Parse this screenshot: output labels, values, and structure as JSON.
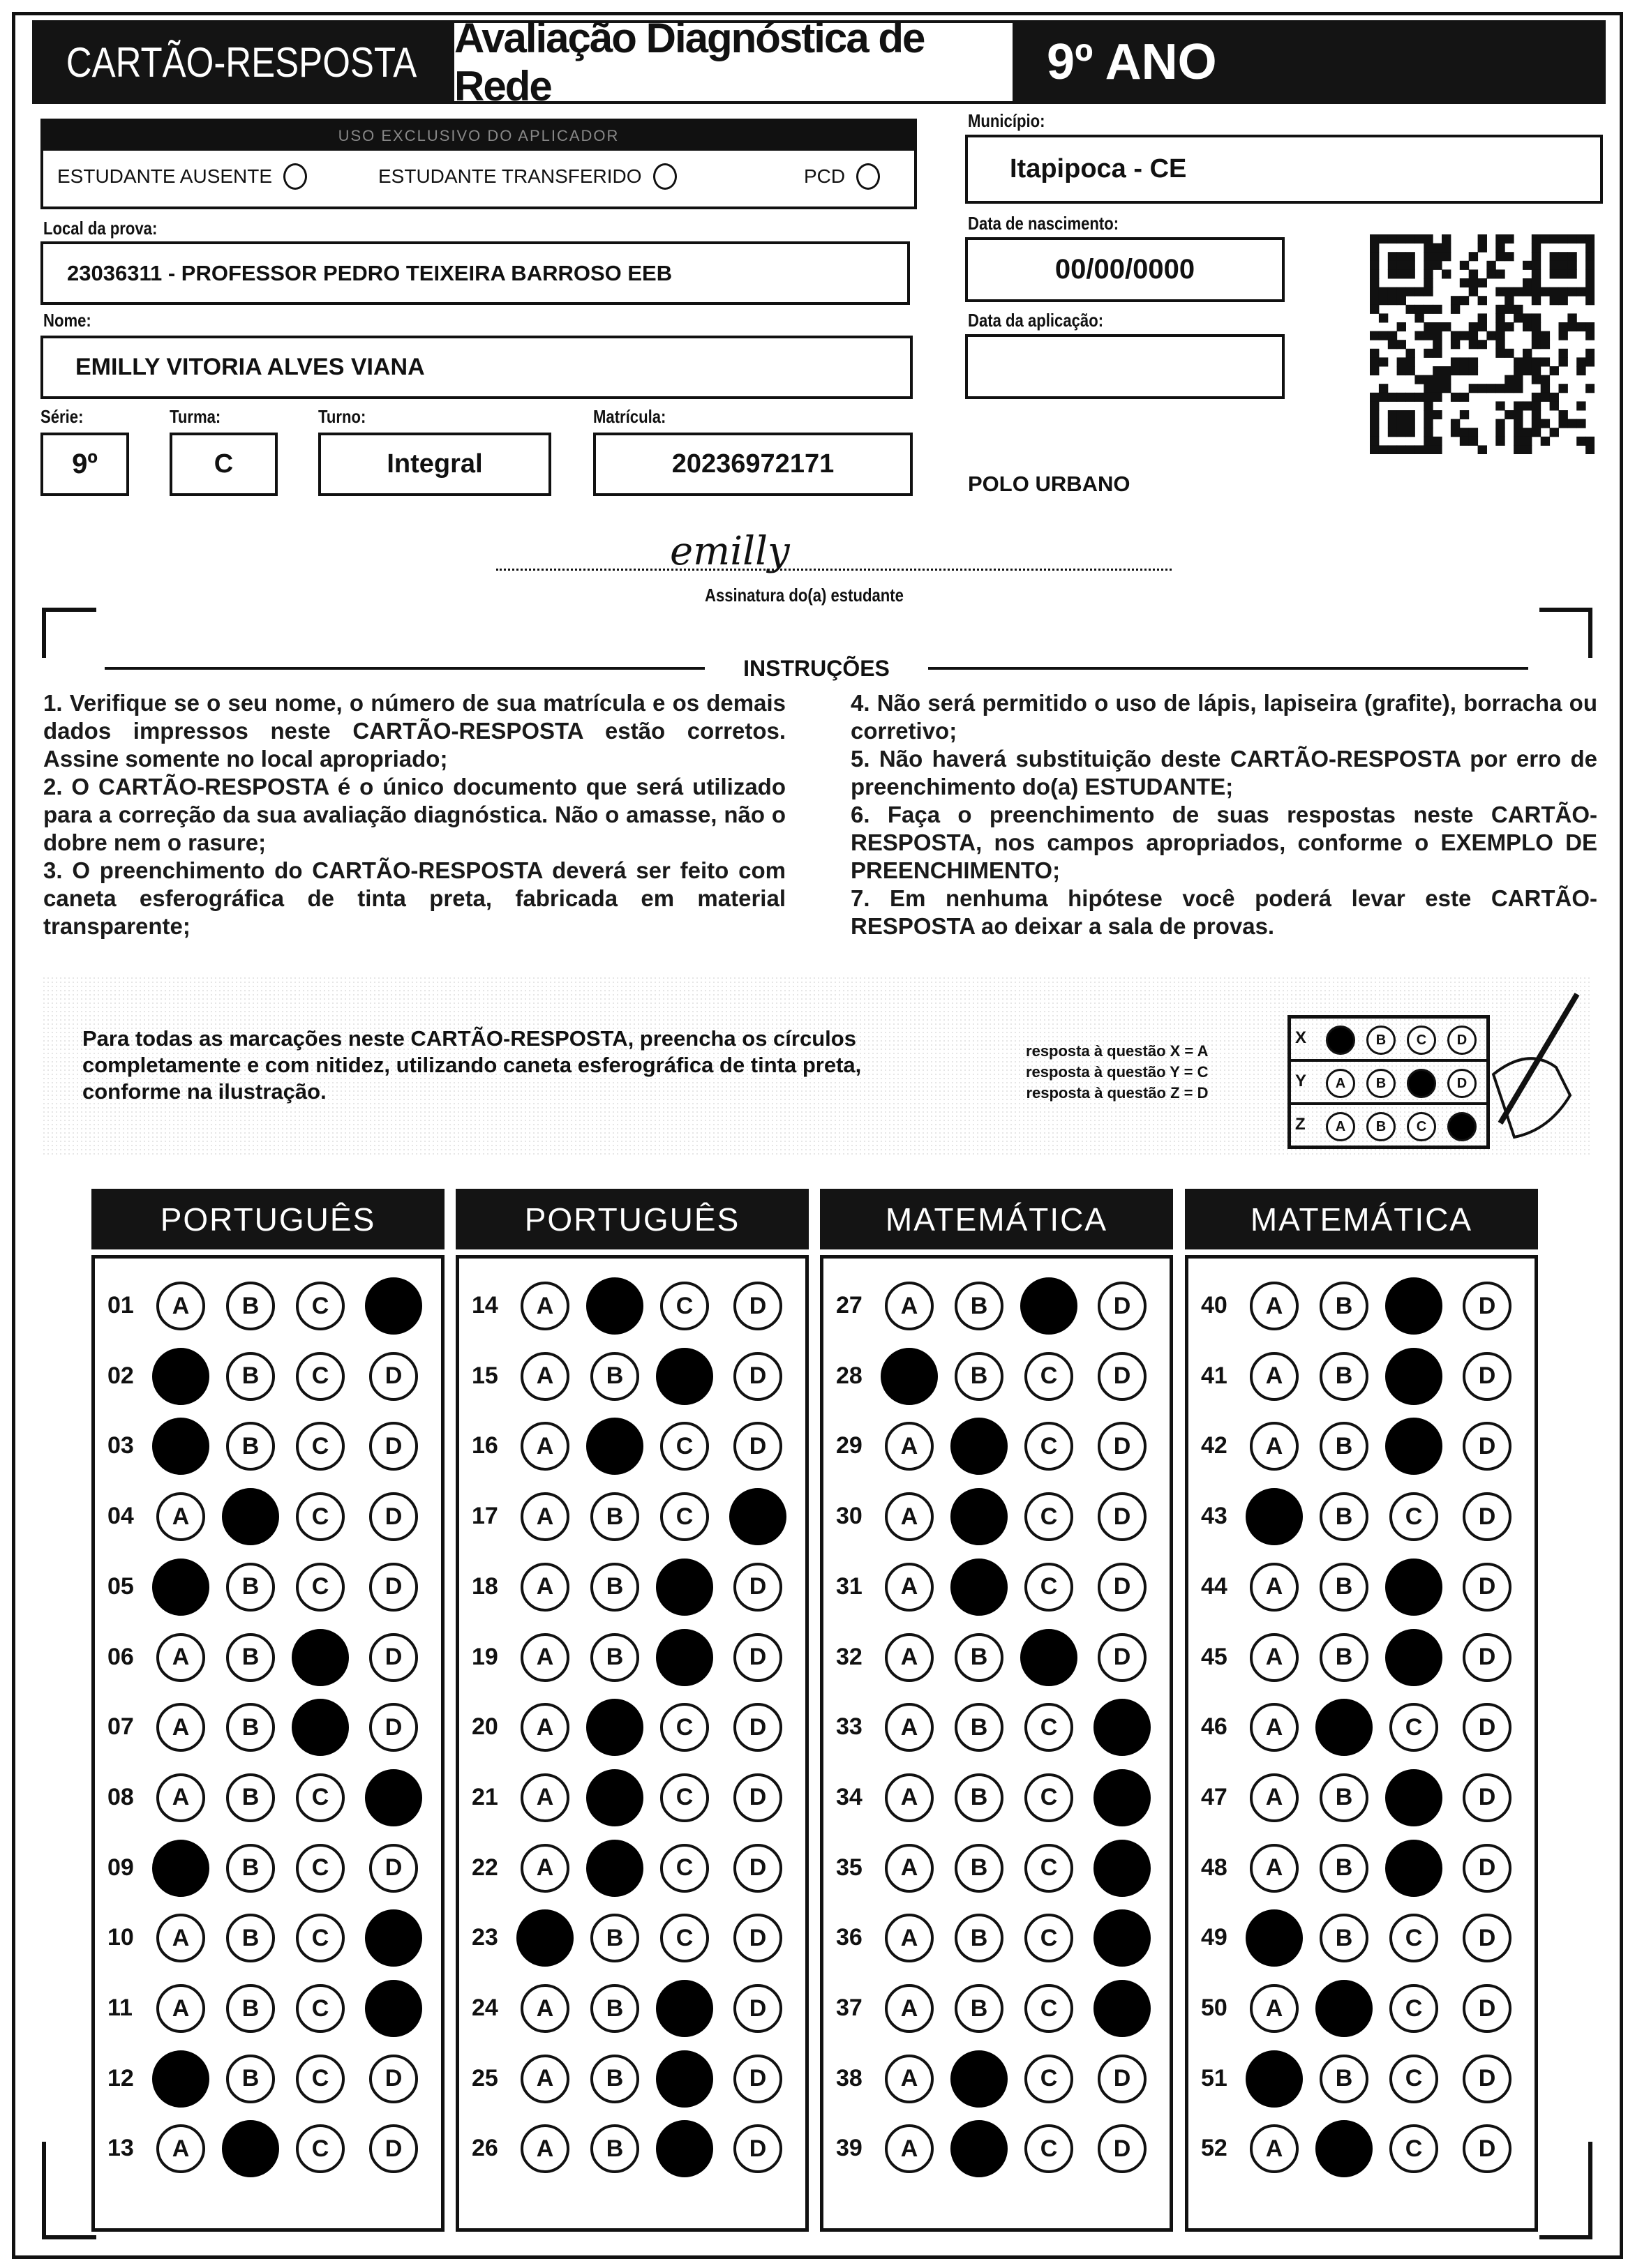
{
  "header": {
    "card_title": "CARTÃO-RESPOSTA",
    "exam_title": "Avaliação Diagnóstica de Rede",
    "grade": "9º ANO"
  },
  "applicator": {
    "title": "USO EXCLUSIVO DO APLICADOR",
    "options": [
      "ESTUDANTE AUSENTE",
      "ESTUDANTE TRANSFERIDO",
      "PCD"
    ]
  },
  "fields": {
    "municipio_label": "Município:",
    "municipio": "Itapipoca - CE",
    "local_label": "Local da prova:",
    "local": "23036311 - PROFESSOR PEDRO TEIXEIRA BARROSO EEB",
    "nascimento_label": "Data de nascimento:",
    "nascimento": "00/00/0000",
    "nome_label": "Nome:",
    "nome": "EMILLY VITORIA ALVES VIANA",
    "aplicacao_label": "Data da aplicação:",
    "aplicacao": "",
    "serie_label": "Série:",
    "serie": "9º",
    "turma_label": "Turma:",
    "turma": "C",
    "turno_label": "Turno:",
    "turno": "Integral",
    "matricula_label": "Matrícula:",
    "matricula": "20236972171",
    "polo": "POLO URBANO"
  },
  "signature": {
    "handwritten": "emilly",
    "label": "Assinatura do(a) estudante"
  },
  "instructions": {
    "title": "INSTRUÇÕES",
    "left": "1. Verifique se o seu nome, o número de sua matrícula e os demais dados impressos neste CARTÃO-RESPOSTA estão corretos. Assine somente no local apropriado;\n2. O CARTÃO-RESPOSTA é o único documento que será utilizado para a correção da sua avaliação diagnóstica. Não o amasse, não o dobre nem o rasure;\n3. O preenchimento do CARTÃO-RESPOSTA deverá ser feito com caneta esferográfica de tinta preta, fabricada em material transparente;",
    "right": "4. Não será permitido o uso de lápis, lapiseira (grafite), borracha ou corretivo;\n5. Não haverá substituição deste CARTÃO-RESPOSTA por erro de preenchimento do(a) ESTUDANTE;\n6. Faça o preenchimento de suas respostas neste CARTÃO-RESPOSTA, nos campos apropriados, conforme o EXEMPLO DE PREENCHIMENTO;\n7. Em nenhuma hipótese você poderá levar este CARTÃO-RESPOSTA ao deixar a sala de provas."
  },
  "fill_example": {
    "text": "Para todas as marcações neste CARTÃO-RESPOSTA, preencha os círculos completamente e com nitidez, utilizando caneta esferográfica de tinta preta, conforme na ilustração.",
    "legend": [
      "resposta à questão X = A",
      "resposta à questão Y = C",
      "resposta à questão Z = D"
    ],
    "rows": [
      {
        "label": "X",
        "marked": "A"
      },
      {
        "label": "Y",
        "marked": "C"
      },
      {
        "label": "Z",
        "marked": "D"
      }
    ]
  },
  "options": [
    "A",
    "B",
    "C",
    "D"
  ],
  "sections": [
    {
      "title": "PORTUGUÊS",
      "questions": [
        [
          "01",
          "D"
        ],
        [
          "02",
          "A"
        ],
        [
          "03",
          "A"
        ],
        [
          "04",
          "B"
        ],
        [
          "05",
          "A"
        ],
        [
          "06",
          "C"
        ],
        [
          "07",
          "C"
        ],
        [
          "08",
          "D"
        ],
        [
          "09",
          "A"
        ],
        [
          "10",
          "D"
        ],
        [
          "11",
          "D"
        ],
        [
          "12",
          "A"
        ],
        [
          "13",
          "B"
        ]
      ]
    },
    {
      "title": "PORTUGUÊS",
      "questions": [
        [
          "14",
          "B"
        ],
        [
          "15",
          "C"
        ],
        [
          "16",
          "B"
        ],
        [
          "17",
          "D"
        ],
        [
          "18",
          "C"
        ],
        [
          "19",
          "C"
        ],
        [
          "20",
          "B"
        ],
        [
          "21",
          "B"
        ],
        [
          "22",
          "B"
        ],
        [
          "23",
          "A"
        ],
        [
          "24",
          "C"
        ],
        [
          "25",
          "C"
        ],
        [
          "26",
          "C"
        ]
      ]
    },
    {
      "title": "MATEMÁTICA",
      "questions": [
        [
          "27",
          "C"
        ],
        [
          "28",
          "A"
        ],
        [
          "29",
          "B"
        ],
        [
          "30",
          "B"
        ],
        [
          "31",
          "B"
        ],
        [
          "32",
          "C"
        ],
        [
          "33",
          "D"
        ],
        [
          "34",
          "D"
        ],
        [
          "35",
          "D"
        ],
        [
          "36",
          "D"
        ],
        [
          "37",
          "D"
        ],
        [
          "38",
          "B"
        ],
        [
          "39",
          "B"
        ]
      ]
    },
    {
      "title": "MATEMÁTICA",
      "questions": [
        [
          "40",
          "C"
        ],
        [
          "41",
          "C"
        ],
        [
          "42",
          "C"
        ],
        [
          "43",
          "A"
        ],
        [
          "44",
          "C"
        ],
        [
          "45",
          "C"
        ],
        [
          "46",
          "B"
        ],
        [
          "47",
          "C"
        ],
        [
          "48",
          "C"
        ],
        [
          "49",
          "A"
        ],
        [
          "50",
          "B"
        ],
        [
          "51",
          "A"
        ],
        [
          "52",
          "B"
        ]
      ]
    }
  ]
}
